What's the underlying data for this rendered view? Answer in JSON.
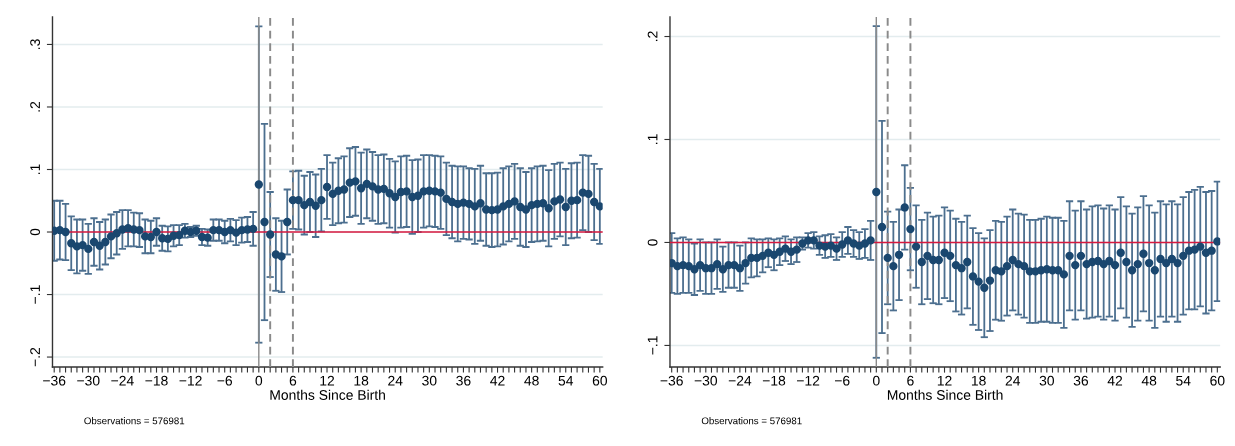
{
  "chart_data": [
    {
      "type": "scatter",
      "xlabel": "Months Since Birth",
      "annotations": [
        "Observations = 576981"
      ],
      "marker": "circle",
      "grid": "y",
      "xlim": [
        -36.3,
        60.5
      ],
      "ylim": [
        -0.216,
        0.344
      ],
      "yticks": [
        {
          "value": -0.2,
          "label": "−.2"
        },
        {
          "value": -0.1,
          "label": "−.1"
        },
        0,
        {
          "value": 0.1,
          "label": ".1"
        },
        {
          "value": 0.2,
          "label": ".2"
        },
        {
          "value": 0.3,
          "label": ".3"
        }
      ],
      "xticks": [
        {
          "value": -36,
          "label": "−36"
        },
        {
          "value": -35,
          "label": null
        },
        {
          "value": -34,
          "label": null
        },
        {
          "value": -33,
          "label": null
        },
        {
          "value": -32,
          "label": null
        },
        {
          "value": -31,
          "label": null
        },
        {
          "value": -30,
          "label": "−30"
        },
        {
          "value": -29,
          "label": null
        },
        {
          "value": -28,
          "label": null
        },
        {
          "value": -27,
          "label": null
        },
        {
          "value": -26,
          "label": null
        },
        {
          "value": -25,
          "label": null
        },
        {
          "value": -24,
          "label": "−24"
        },
        {
          "value": -23,
          "label": null
        },
        {
          "value": -22,
          "label": null
        },
        {
          "value": -21,
          "label": null
        },
        {
          "value": -20,
          "label": null
        },
        {
          "value": -19,
          "label": null
        },
        {
          "value": -18,
          "label": "−18"
        },
        {
          "value": -17,
          "label": null
        },
        {
          "value": -16,
          "label": null
        },
        {
          "value": -15,
          "label": null
        },
        {
          "value": -14,
          "label": null
        },
        {
          "value": -13,
          "label": null
        },
        {
          "value": -12,
          "label": "−12"
        },
        {
          "value": -11,
          "label": null
        },
        {
          "value": -10,
          "label": null
        },
        {
          "value": -9,
          "label": null
        },
        {
          "value": -8,
          "label": null
        },
        {
          "value": -7,
          "label": null
        },
        {
          "value": -6,
          "label": "−6"
        },
        {
          "value": -5,
          "label": null
        },
        {
          "value": -4,
          "label": null
        },
        {
          "value": -3,
          "label": null
        },
        {
          "value": -2,
          "label": null
        },
        {
          "value": -1,
          "label": null
        },
        0,
        {
          "value": 1,
          "label": null
        },
        {
          "value": 2,
          "label": null
        },
        {
          "value": 3,
          "label": null
        },
        {
          "value": 4,
          "label": null
        },
        {
          "value": 5,
          "label": null
        },
        6,
        {
          "value": 7,
          "label": null
        },
        {
          "value": 8,
          "label": null
        },
        {
          "value": 9,
          "label": null
        },
        {
          "value": 10,
          "label": null
        },
        {
          "value": 11,
          "label": null
        },
        12,
        {
          "value": 13,
          "label": null
        },
        {
          "value": 14,
          "label": null
        },
        {
          "value": 15,
          "label": null
        },
        {
          "value": 16,
          "label": null
        },
        {
          "value": 17,
          "label": null
        },
        18,
        {
          "value": 19,
          "label": null
        },
        {
          "value": 20,
          "label": null
        },
        {
          "value": 21,
          "label": null
        },
        {
          "value": 22,
          "label": null
        },
        {
          "value": 23,
          "label": null
        },
        24,
        {
          "value": 25,
          "label": null
        },
        {
          "value": 26,
          "label": null
        },
        {
          "value": 27,
          "label": null
        },
        {
          "value": 28,
          "label": null
        },
        {
          "value": 29,
          "label": null
        },
        30,
        {
          "value": 31,
          "label": null
        },
        {
          "value": 32,
          "label": null
        },
        {
          "value": 33,
          "label": null
        },
        {
          "value": 34,
          "label": null
        },
        {
          "value": 35,
          "label": null
        },
        36,
        {
          "value": 37,
          "label": null
        },
        {
          "value": 38,
          "label": null
        },
        {
          "value": 39,
          "label": null
        },
        {
          "value": 40,
          "label": null
        },
        {
          "value": 41,
          "label": null
        },
        42,
        {
          "value": 43,
          "label": null
        },
        {
          "value": 44,
          "label": null
        },
        {
          "value": 45,
          "label": null
        },
        {
          "value": 46,
          "label": null
        },
        {
          "value": 47,
          "label": null
        },
        48,
        {
          "value": 49,
          "label": null
        },
        {
          "value": 50,
          "label": null
        },
        {
          "value": 51,
          "label": null
        },
        {
          "value": 52,
          "label": null
        },
        {
          "value": 53,
          "label": null
        },
        54,
        {
          "value": 55,
          "label": null
        },
        {
          "value": 56,
          "label": null
        },
        {
          "value": 57,
          "label": null
        },
        {
          "value": 58,
          "label": null
        },
        {
          "value": 59,
          "label": null
        },
        60
      ],
      "ref_lines": [
        {
          "axis": "x",
          "value": 0,
          "color": "#8a8a8a",
          "line_style": "solid"
        },
        {
          "axis": "x",
          "value": 2,
          "color": "#8a8a8a",
          "line_style": "dashed"
        },
        {
          "axis": "x",
          "value": 6,
          "color": "#8a8a8a",
          "line_style": "dashed"
        },
        {
          "axis": "y",
          "value": 0,
          "color": "#d7193f",
          "line_style": "solid"
        }
      ],
      "x": [
        -36,
        -35,
        -34,
        -33,
        -32,
        -31,
        -30,
        -29,
        -28,
        -27,
        -26,
        -25,
        -24,
        -23,
        -22,
        -21,
        -20,
        -19,
        -18,
        -17,
        -16,
        -15,
        -14,
        -13,
        -12,
        -11,
        -10,
        -9,
        -8,
        -7,
        -6,
        -5,
        -4,
        -3,
        -2,
        -1,
        0,
        1,
        2,
        3,
        4,
        5,
        6,
        7,
        8,
        9,
        10,
        11,
        12,
        13,
        14,
        15,
        16,
        17,
        18,
        19,
        20,
        21,
        22,
        23,
        24,
        25,
        26,
        27,
        28,
        29,
        30,
        31,
        32,
        33,
        34,
        35,
        36,
        37,
        38,
        39,
        40,
        41,
        42,
        43,
        44,
        45,
        46,
        47,
        48,
        49,
        50,
        51,
        52,
        53,
        54,
        55,
        56,
        57,
        58,
        59,
        60
      ],
      "series": [
        {
          "color": "#1a476f",
          "values": [
            0.002,
            0.003,
            0.0,
            -0.018,
            -0.023,
            -0.021,
            -0.027,
            -0.016,
            -0.022,
            -0.016,
            -0.007,
            -0.002,
            0.004,
            0.006,
            0.004,
            0.003,
            -0.007,
            -0.008,
            0.0,
            -0.01,
            -0.011,
            -0.006,
            -0.005,
            0.002,
            0.0,
            0.002,
            -0.008,
            -0.009,
            0.003,
            0.003,
            0.0,
            0.003,
            -0.001,
            0.003,
            0.004,
            0.005,
            0.076,
            0.016,
            -0.004,
            -0.036,
            -0.039,
            0.016,
            0.051,
            0.051,
            0.043,
            0.048,
            0.042,
            0.051,
            0.072,
            0.061,
            0.066,
            0.068,
            0.079,
            0.081,
            0.07,
            0.077,
            0.073,
            0.068,
            0.069,
            0.062,
            0.056,
            0.064,
            0.065,
            0.056,
            0.058,
            0.065,
            0.066,
            0.065,
            0.063,
            0.053,
            0.048,
            0.045,
            0.047,
            0.045,
            0.041,
            0.046,
            0.036,
            0.035,
            0.036,
            0.041,
            0.045,
            0.049,
            0.04,
            0.036,
            0.043,
            0.045,
            0.046,
            0.038,
            0.049,
            0.052,
            0.04,
            0.05,
            0.051,
            0.063,
            0.061,
            0.048,
            0.041
          ],
          "errors": [
            0.048,
            0.047,
            0.045,
            0.043,
            0.043,
            0.041,
            0.04,
            0.038,
            0.038,
            0.036,
            0.035,
            0.034,
            0.031,
            0.029,
            0.027,
            0.027,
            0.027,
            0.026,
            0.022,
            0.02,
            0.02,
            0.017,
            0.016,
            0.011,
            0.008,
            0.008,
            0.013,
            0.013,
            0.017,
            0.017,
            0.018,
            0.018,
            0.02,
            0.02,
            0.02,
            0.027,
            0.253,
            0.157,
            0.068,
            0.058,
            0.057,
            0.052,
            0.046,
            0.047,
            0.047,
            0.048,
            0.05,
            0.05,
            0.051,
            0.05,
            0.052,
            0.053,
            0.055,
            0.055,
            0.057,
            0.055,
            0.055,
            0.055,
            0.055,
            0.055,
            0.057,
            0.057,
            0.057,
            0.059,
            0.058,
            0.058,
            0.057,
            0.057,
            0.058,
            0.058,
            0.058,
            0.06,
            0.058,
            0.057,
            0.06,
            0.06,
            0.058,
            0.059,
            0.059,
            0.061,
            0.06,
            0.06,
            0.062,
            0.06,
            0.059,
            0.06,
            0.06,
            0.061,
            0.06,
            0.059,
            0.061,
            0.06,
            0.06,
            0.06,
            0.061,
            0.061,
            0.06
          ]
        }
      ]
    },
    {
      "type": "scatter",
      "xlabel": "Months Since Birth",
      "annotations": [
        "Observations = 576981"
      ],
      "marker": "circle",
      "grid": "y",
      "xlim": [
        -36.3,
        60.5
      ],
      "ylim": [
        -0.121,
        0.219
      ],
      "yticks": [
        {
          "value": -0.1,
          "label": "−.1"
        },
        0,
        {
          "value": 0.1,
          "label": ".1"
        },
        {
          "value": 0.2,
          "label": ".2"
        }
      ],
      "xticks": [
        {
          "value": -36,
          "label": "−36"
        },
        {
          "value": -35,
          "label": null
        },
        {
          "value": -34,
          "label": null
        },
        {
          "value": -33,
          "label": null
        },
        {
          "value": -32,
          "label": null
        },
        {
          "value": -31,
          "label": null
        },
        {
          "value": -30,
          "label": "−30"
        },
        {
          "value": -29,
          "label": null
        },
        {
          "value": -28,
          "label": null
        },
        {
          "value": -27,
          "label": null
        },
        {
          "value": -26,
          "label": null
        },
        {
          "value": -25,
          "label": null
        },
        {
          "value": -24,
          "label": "−24"
        },
        {
          "value": -23,
          "label": null
        },
        {
          "value": -22,
          "label": null
        },
        {
          "value": -21,
          "label": null
        },
        {
          "value": -20,
          "label": null
        },
        {
          "value": -19,
          "label": null
        },
        {
          "value": -18,
          "label": "−18"
        },
        {
          "value": -17,
          "label": null
        },
        {
          "value": -16,
          "label": null
        },
        {
          "value": -15,
          "label": null
        },
        {
          "value": -14,
          "label": null
        },
        {
          "value": -13,
          "label": null
        },
        {
          "value": -12,
          "label": "−12"
        },
        {
          "value": -11,
          "label": null
        },
        {
          "value": -10,
          "label": null
        },
        {
          "value": -9,
          "label": null
        },
        {
          "value": -8,
          "label": null
        },
        {
          "value": -7,
          "label": null
        },
        {
          "value": -6,
          "label": "−6"
        },
        {
          "value": -5,
          "label": null
        },
        {
          "value": -4,
          "label": null
        },
        {
          "value": -3,
          "label": null
        },
        {
          "value": -2,
          "label": null
        },
        {
          "value": -1,
          "label": null
        },
        0,
        {
          "value": 1,
          "label": null
        },
        {
          "value": 2,
          "label": null
        },
        {
          "value": 3,
          "label": null
        },
        {
          "value": 4,
          "label": null
        },
        {
          "value": 5,
          "label": null
        },
        6,
        {
          "value": 7,
          "label": null
        },
        {
          "value": 8,
          "label": null
        },
        {
          "value": 9,
          "label": null
        },
        {
          "value": 10,
          "label": null
        },
        {
          "value": 11,
          "label": null
        },
        12,
        {
          "value": 13,
          "label": null
        },
        {
          "value": 14,
          "label": null
        },
        {
          "value": 15,
          "label": null
        },
        {
          "value": 16,
          "label": null
        },
        {
          "value": 17,
          "label": null
        },
        18,
        {
          "value": 19,
          "label": null
        },
        {
          "value": 20,
          "label": null
        },
        {
          "value": 21,
          "label": null
        },
        {
          "value": 22,
          "label": null
        },
        {
          "value": 23,
          "label": null
        },
        24,
        {
          "value": 25,
          "label": null
        },
        {
          "value": 26,
          "label": null
        },
        {
          "value": 27,
          "label": null
        },
        {
          "value": 28,
          "label": null
        },
        {
          "value": 29,
          "label": null
        },
        30,
        {
          "value": 31,
          "label": null
        },
        {
          "value": 32,
          "label": null
        },
        {
          "value": 33,
          "label": null
        },
        {
          "value": 34,
          "label": null
        },
        {
          "value": 35,
          "label": null
        },
        36,
        {
          "value": 37,
          "label": null
        },
        {
          "value": 38,
          "label": null
        },
        {
          "value": 39,
          "label": null
        },
        {
          "value": 40,
          "label": null
        },
        {
          "value": 41,
          "label": null
        },
        42,
        {
          "value": 43,
          "label": null
        },
        {
          "value": 44,
          "label": null
        },
        {
          "value": 45,
          "label": null
        },
        {
          "value": 46,
          "label": null
        },
        {
          "value": 47,
          "label": null
        },
        48,
        {
          "value": 49,
          "label": null
        },
        {
          "value": 50,
          "label": null
        },
        {
          "value": 51,
          "label": null
        },
        {
          "value": 52,
          "label": null
        },
        {
          "value": 53,
          "label": null
        },
        54,
        {
          "value": 55,
          "label": null
        },
        {
          "value": 56,
          "label": null
        },
        {
          "value": 57,
          "label": null
        },
        {
          "value": 58,
          "label": null
        },
        {
          "value": 59,
          "label": null
        },
        60
      ],
      "ref_lines": [
        {
          "axis": "x",
          "value": 0,
          "color": "#8a8a8a",
          "line_style": "solid"
        },
        {
          "axis": "x",
          "value": 2,
          "color": "#8a8a8a",
          "line_style": "dashed"
        },
        {
          "axis": "x",
          "value": 6,
          "color": "#8a8a8a",
          "line_style": "dashed"
        },
        {
          "axis": "y",
          "value": 0,
          "color": "#d7193f",
          "line_style": "solid"
        }
      ],
      "x": [
        -36,
        -35,
        -34,
        -33,
        -32,
        -31,
        -30,
        -29,
        -28,
        -27,
        -26,
        -25,
        -24,
        -23,
        -22,
        -21,
        -20,
        -19,
        -18,
        -17,
        -16,
        -15,
        -14,
        -13,
        -12,
        -11,
        -10,
        -9,
        -8,
        -7,
        -6,
        -5,
        -4,
        -3,
        -2,
        -1,
        0,
        1,
        2,
        3,
        4,
        5,
        6,
        7,
        8,
        9,
        10,
        11,
        12,
        13,
        14,
        15,
        16,
        17,
        18,
        19,
        20,
        21,
        22,
        23,
        24,
        25,
        26,
        27,
        28,
        29,
        30,
        31,
        32,
        33,
        34,
        35,
        36,
        37,
        38,
        39,
        40,
        41,
        42,
        43,
        44,
        45,
        46,
        47,
        48,
        49,
        50,
        51,
        52,
        53,
        54,
        55,
        56,
        57,
        58,
        59,
        60
      ],
      "series": [
        {
          "color": "#1a476f",
          "values": [
            -0.02,
            -0.023,
            -0.022,
            -0.023,
            -0.026,
            -0.022,
            -0.025,
            -0.025,
            -0.021,
            -0.026,
            -0.022,
            -0.022,
            -0.025,
            -0.02,
            -0.015,
            -0.015,
            -0.013,
            -0.01,
            -0.012,
            -0.009,
            -0.006,
            -0.009,
            -0.007,
            -0.001,
            0.002,
            0.002,
            -0.003,
            -0.004,
            -0.003,
            -0.006,
            -0.002,
            0.002,
            -0.001,
            -0.003,
            -0.001,
            0.002,
            0.049,
            0.015,
            -0.015,
            -0.023,
            -0.012,
            0.034,
            0.013,
            -0.004,
            -0.019,
            -0.013,
            -0.017,
            -0.017,
            -0.01,
            -0.013,
            -0.022,
            -0.025,
            -0.019,
            -0.033,
            -0.038,
            -0.044,
            -0.037,
            -0.027,
            -0.028,
            -0.023,
            -0.017,
            -0.021,
            -0.023,
            -0.028,
            -0.028,
            -0.027,
            -0.026,
            -0.027,
            -0.027,
            -0.031,
            -0.013,
            -0.022,
            -0.013,
            -0.021,
            -0.019,
            -0.018,
            -0.021,
            -0.018,
            -0.022,
            -0.01,
            -0.019,
            -0.027,
            -0.021,
            -0.011,
            -0.02,
            -0.027,
            -0.016,
            -0.02,
            -0.016,
            -0.02,
            -0.013,
            -0.008,
            -0.007,
            -0.004,
            -0.01,
            -0.008,
            0.001
          ],
          "errors": [
            0.029,
            0.027,
            0.027,
            0.026,
            0.025,
            0.025,
            0.025,
            0.025,
            0.024,
            0.022,
            0.022,
            0.022,
            0.022,
            0.02,
            0.019,
            0.018,
            0.016,
            0.014,
            0.015,
            0.013,
            0.012,
            0.012,
            0.012,
            0.006,
            0.007,
            0.008,
            0.009,
            0.011,
            0.011,
            0.011,
            0.012,
            0.013,
            0.013,
            0.013,
            0.014,
            0.019,
            0.161,
            0.103,
            0.045,
            0.043,
            0.044,
            0.041,
            0.04,
            0.04,
            0.041,
            0.042,
            0.042,
            0.043,
            0.044,
            0.044,
            0.045,
            0.045,
            0.045,
            0.047,
            0.047,
            0.048,
            0.049,
            0.048,
            0.048,
            0.048,
            0.049,
            0.049,
            0.05,
            0.05,
            0.05,
            0.05,
            0.051,
            0.051,
            0.051,
            0.052,
            0.053,
            0.053,
            0.053,
            0.053,
            0.054,
            0.054,
            0.054,
            0.054,
            0.054,
            0.054,
            0.054,
            0.055,
            0.055,
            0.056,
            0.056,
            0.056,
            0.056,
            0.057,
            0.056,
            0.057,
            0.057,
            0.057,
            0.058,
            0.058,
            0.059,
            0.058,
            0.058
          ]
        }
      ]
    }
  ]
}
